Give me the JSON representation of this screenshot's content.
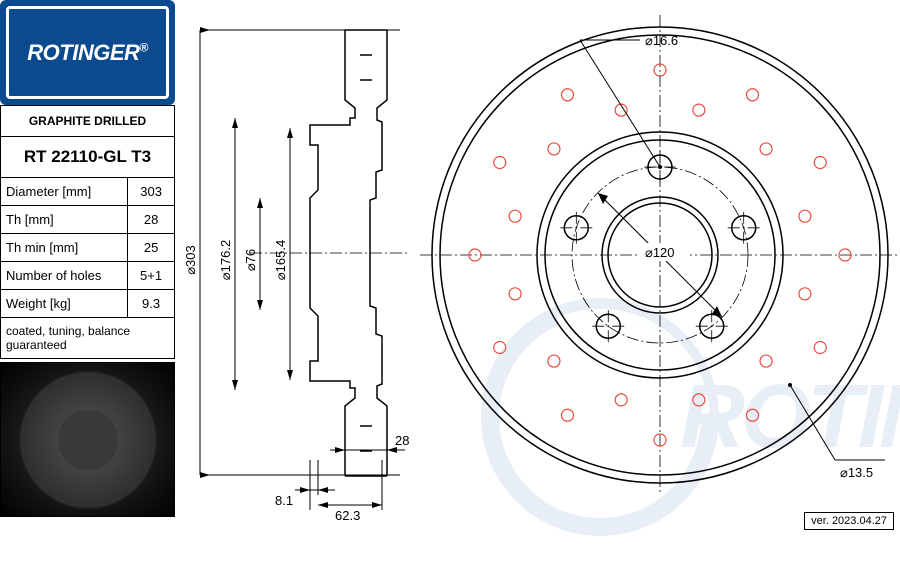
{
  "brand": "ROTINGER",
  "product_type": "GRAPHITE DRILLED",
  "part_number": "RT 22110-GL T3",
  "specs": [
    {
      "label": "Diameter [mm]",
      "value": "303"
    },
    {
      "label": "Th [mm]",
      "value": "28"
    },
    {
      "label": "Th min [mm]",
      "value": "25"
    },
    {
      "label": "Number of holes",
      "value": "5+1"
    },
    {
      "label": "Weight [kg]",
      "value": "9.3"
    }
  ],
  "note": "coated, tuning, balance guaranteed",
  "version": "ver. 2023.04.27",
  "drawing": {
    "side_view": {
      "dims": {
        "outer_dia": "⌀303",
        "d1": "⌀176.2",
        "d2": "⌀76",
        "d3": "⌀165.4",
        "thickness": "28",
        "offset1": "8.1",
        "offset2": "62.3"
      },
      "colors": {
        "line": "#000000"
      }
    },
    "front_view": {
      "outer_radius": 230,
      "bolt_circle_dia": "⌀120",
      "bolt_hole_dia": "⌀16.6",
      "drill_hole_dia": "⌀13.5",
      "bolt_holes": 5,
      "drill_rings": [
        {
          "r": 185,
          "count": 12
        },
        {
          "r": 150,
          "count": 12
        }
      ],
      "colors": {
        "outline": "#000000",
        "hole": "#e74c3c",
        "centerline": "#000000"
      }
    }
  }
}
